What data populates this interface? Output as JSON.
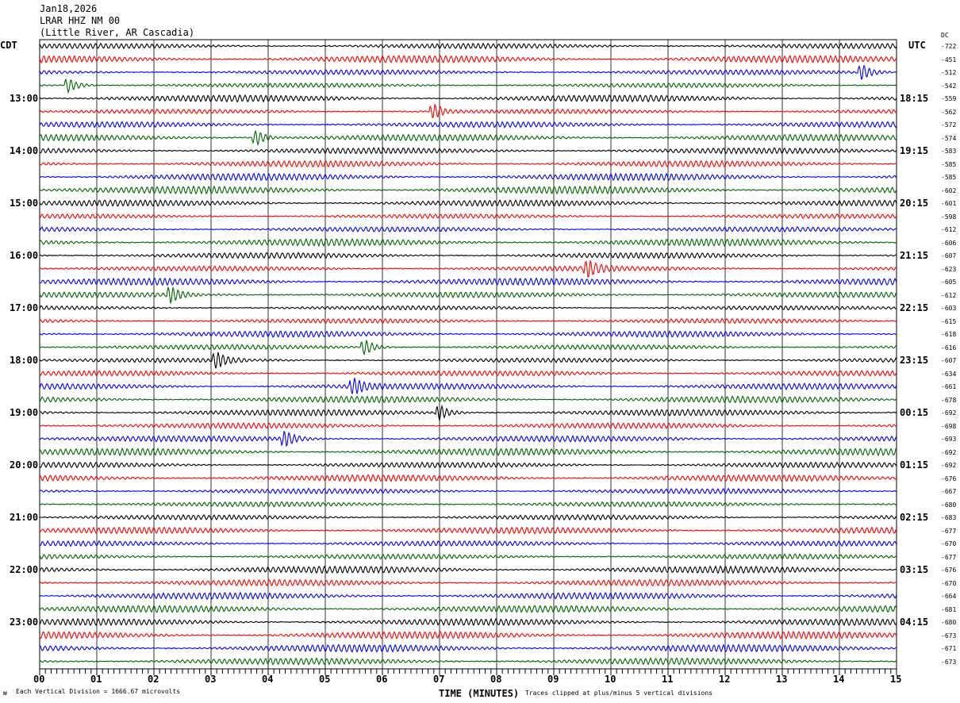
{
  "header": {
    "date": "Jan18,2026",
    "station": "LRAR HHZ NM 00",
    "location": "(Little River, AR Cascadia)"
  },
  "left_tz": "CDT",
  "right_tz": "UTC",
  "dc_label": "DC",
  "footer": {
    "scale": "Each Vertical Division = 1666.67 microvolts",
    "xlabel": "TIME (MINUTES)",
    "clip": "Traces clipped at plus/minus 5 vertical divisions"
  },
  "chart_data": {
    "type": "line",
    "title": "LRAR HHZ NM 00 helicorder",
    "xlabel": "TIME (MINUTES)",
    "xlim": [
      0,
      15
    ],
    "x_ticks": [
      "00",
      "01",
      "02",
      "03",
      "04",
      "05",
      "06",
      "07",
      "08",
      "09",
      "10",
      "11",
      "12",
      "13",
      "14",
      "15"
    ],
    "trace_colors": [
      "#000000",
      "#ff0000",
      "#0000ff",
      "#006400"
    ],
    "left_hour_labels": [
      "13:00",
      "14:00",
      "15:00",
      "16:00",
      "17:00",
      "18:00",
      "19:00",
      "20:00",
      "21:00",
      "22:00",
      "23:00"
    ],
    "right_hour_labels": [
      "18:15",
      "19:15",
      "20:15",
      "21:15",
      "22:15",
      "23:15",
      "00:15",
      "01:15",
      "02:15",
      "03:15",
      "04:15"
    ],
    "dc_offsets": [
      "-722",
      "-451",
      "-512",
      "-542",
      "-559",
      "-562",
      "-572",
      "-574",
      "-583",
      "-585",
      "-585",
      "-602",
      "-601",
      "-598",
      "-612",
      "-606",
      "-607",
      "-623",
      "-605",
      "-612",
      "-603",
      "-615",
      "-618",
      "-616",
      "-607",
      "-634",
      "-661",
      "-678",
      "-692",
      "-698",
      "-693",
      "-692",
      "-692",
      "-676",
      "-667",
      "-680",
      "-683",
      "-677",
      "-670",
      "-677",
      "-676",
      "-670",
      "-664",
      "-681",
      "-680",
      "-673",
      "-671",
      "-673"
    ],
    "events": [
      {
        "trace": 3,
        "minute": 0.5
      },
      {
        "trace": 2,
        "minute": 14.4
      },
      {
        "trace": 5,
        "minute": 6.9
      },
      {
        "trace": 7,
        "minute": 3.8
      },
      {
        "trace": 17,
        "minute": 9.6
      },
      {
        "trace": 19,
        "minute": 2.3
      },
      {
        "trace": 23,
        "minute": 5.7
      },
      {
        "trace": 24,
        "minute": 3.1
      },
      {
        "trace": 26,
        "minute": 5.5
      },
      {
        "trace": 28,
        "minute": 7.0
      },
      {
        "trace": 30,
        "minute": 4.3
      }
    ]
  }
}
